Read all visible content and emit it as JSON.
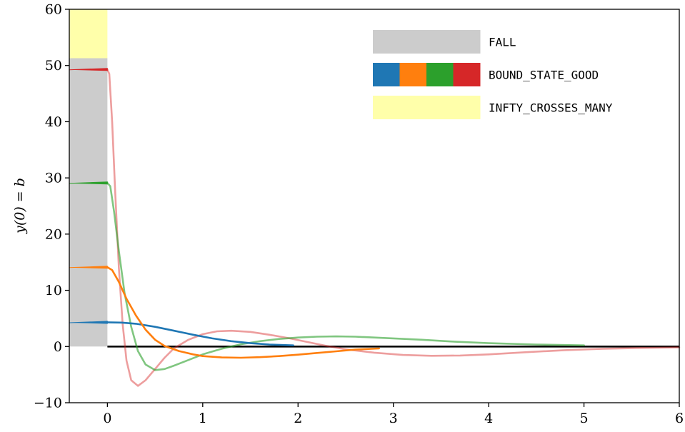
{
  "chart_data": {
    "type": "line",
    "ylabel": "y(0) = b",
    "xlabel": "",
    "xlim": [
      -0.4,
      6.0
    ],
    "ylim": [
      -10,
      60
    ],
    "xticks": [
      "0",
      "1",
      "2",
      "3",
      "4",
      "5",
      "6"
    ],
    "yticks": [
      "−10",
      "0",
      "10",
      "20",
      "30",
      "40",
      "50",
      "60"
    ],
    "regions": [
      {
        "name": "FALL",
        "x": [
          -0.4,
          0
        ],
        "y": [
          0,
          51.3
        ],
        "color": "#cccccc"
      },
      {
        "name": "INFTY_CROSSES_MANY",
        "x": [
          -0.4,
          0
        ],
        "y": [
          51.3,
          60
        ],
        "color": "#ffffaa"
      }
    ],
    "zero_line": {
      "x": [
        0,
        6
      ],
      "y": 0,
      "color": "#000000"
    },
    "series": [
      {
        "color": "#1f77b4",
        "b": 4.3,
        "opacity": 1.0,
        "x_end": 1.95,
        "points": [
          [
            0,
            4.3
          ],
          [
            0.15,
            4.25
          ],
          [
            0.3,
            4.05
          ],
          [
            0.5,
            3.5
          ],
          [
            0.7,
            2.8
          ],
          [
            0.9,
            2.1
          ],
          [
            1.1,
            1.45
          ],
          [
            1.3,
            0.95
          ],
          [
            1.5,
            0.6
          ],
          [
            1.7,
            0.35
          ],
          [
            1.95,
            0.2
          ]
        ]
      },
      {
        "color": "#ff7f0e",
        "b": 14.1,
        "opacity": 1.0,
        "x_end": 2.85,
        "points": [
          [
            0,
            14.1
          ],
          [
            0.05,
            13.6
          ],
          [
            0.12,
            11.5
          ],
          [
            0.2,
            8.5
          ],
          [
            0.3,
            5.5
          ],
          [
            0.4,
            3.0
          ],
          [
            0.5,
            1.2
          ],
          [
            0.6,
            0.1
          ],
          [
            0.75,
            -0.8
          ],
          [
            0.9,
            -1.4
          ],
          [
            1.0,
            -1.7
          ],
          [
            1.2,
            -1.95
          ],
          [
            1.4,
            -2.0
          ],
          [
            1.6,
            -1.9
          ],
          [
            1.8,
            -1.7
          ],
          [
            2.0,
            -1.45
          ],
          [
            2.2,
            -1.15
          ],
          [
            2.4,
            -0.85
          ],
          [
            2.6,
            -0.55
          ],
          [
            2.85,
            -0.35
          ]
        ]
      },
      {
        "color": "#2ca02c",
        "b": 29.1,
        "opacity": 0.6,
        "x_end": 5.0,
        "points": [
          [
            0,
            29.1
          ],
          [
            0.03,
            28.5
          ],
          [
            0.07,
            24.0
          ],
          [
            0.12,
            17.0
          ],
          [
            0.18,
            9.5
          ],
          [
            0.25,
            3.5
          ],
          [
            0.32,
            -0.8
          ],
          [
            0.4,
            -3.2
          ],
          [
            0.5,
            -4.2
          ],
          [
            0.6,
            -4.0
          ],
          [
            0.7,
            -3.4
          ],
          [
            0.85,
            -2.4
          ],
          [
            1.0,
            -1.4
          ],
          [
            1.2,
            -0.4
          ],
          [
            1.4,
            0.4
          ],
          [
            1.6,
            0.95
          ],
          [
            1.8,
            1.35
          ],
          [
            2.0,
            1.6
          ],
          [
            2.2,
            1.75
          ],
          [
            2.4,
            1.8
          ],
          [
            2.6,
            1.75
          ],
          [
            2.8,
            1.6
          ],
          [
            3.0,
            1.45
          ],
          [
            3.3,
            1.2
          ],
          [
            3.6,
            0.9
          ],
          [
            4.0,
            0.6
          ],
          [
            4.5,
            0.35
          ],
          [
            5.0,
            0.2
          ]
        ]
      },
      {
        "color": "#d62728",
        "b": 49.3,
        "opacity": 0.45,
        "x_end": 6.0,
        "points": [
          [
            0,
            49.3
          ],
          [
            0.02,
            48.5
          ],
          [
            0.05,
            40.0
          ],
          [
            0.08,
            28.0
          ],
          [
            0.12,
            14.0
          ],
          [
            0.16,
            4.0
          ],
          [
            0.2,
            -2.5
          ],
          [
            0.25,
            -6.0
          ],
          [
            0.32,
            -7.0
          ],
          [
            0.4,
            -6.0
          ],
          [
            0.5,
            -4.0
          ],
          [
            0.6,
            -2.0
          ],
          [
            0.7,
            -0.3
          ],
          [
            0.85,
            1.2
          ],
          [
            1.0,
            2.2
          ],
          [
            1.15,
            2.7
          ],
          [
            1.3,
            2.8
          ],
          [
            1.5,
            2.6
          ],
          [
            1.7,
            2.1
          ],
          [
            1.9,
            1.5
          ],
          [
            2.1,
            0.8
          ],
          [
            2.3,
            0.1
          ],
          [
            2.5,
            -0.5
          ],
          [
            2.8,
            -1.1
          ],
          [
            3.1,
            -1.5
          ],
          [
            3.4,
            -1.65
          ],
          [
            3.7,
            -1.6
          ],
          [
            4.0,
            -1.4
          ],
          [
            4.4,
            -1.0
          ],
          [
            4.8,
            -0.65
          ],
          [
            5.2,
            -0.4
          ],
          [
            5.6,
            -0.25
          ],
          [
            6.0,
            -0.15
          ]
        ]
      }
    ],
    "legend": {
      "placement": "top-right",
      "entries": [
        {
          "label": "FALL",
          "colors": [
            "#cccccc"
          ]
        },
        {
          "label": "BOUND_STATE_GOOD",
          "colors": [
            "#1f77b4",
            "#ff7f0e",
            "#2ca02c",
            "#d62728"
          ]
        },
        {
          "label": "INFTY_CROSSES_MANY",
          "colors": [
            "#ffffaa"
          ]
        }
      ]
    }
  }
}
